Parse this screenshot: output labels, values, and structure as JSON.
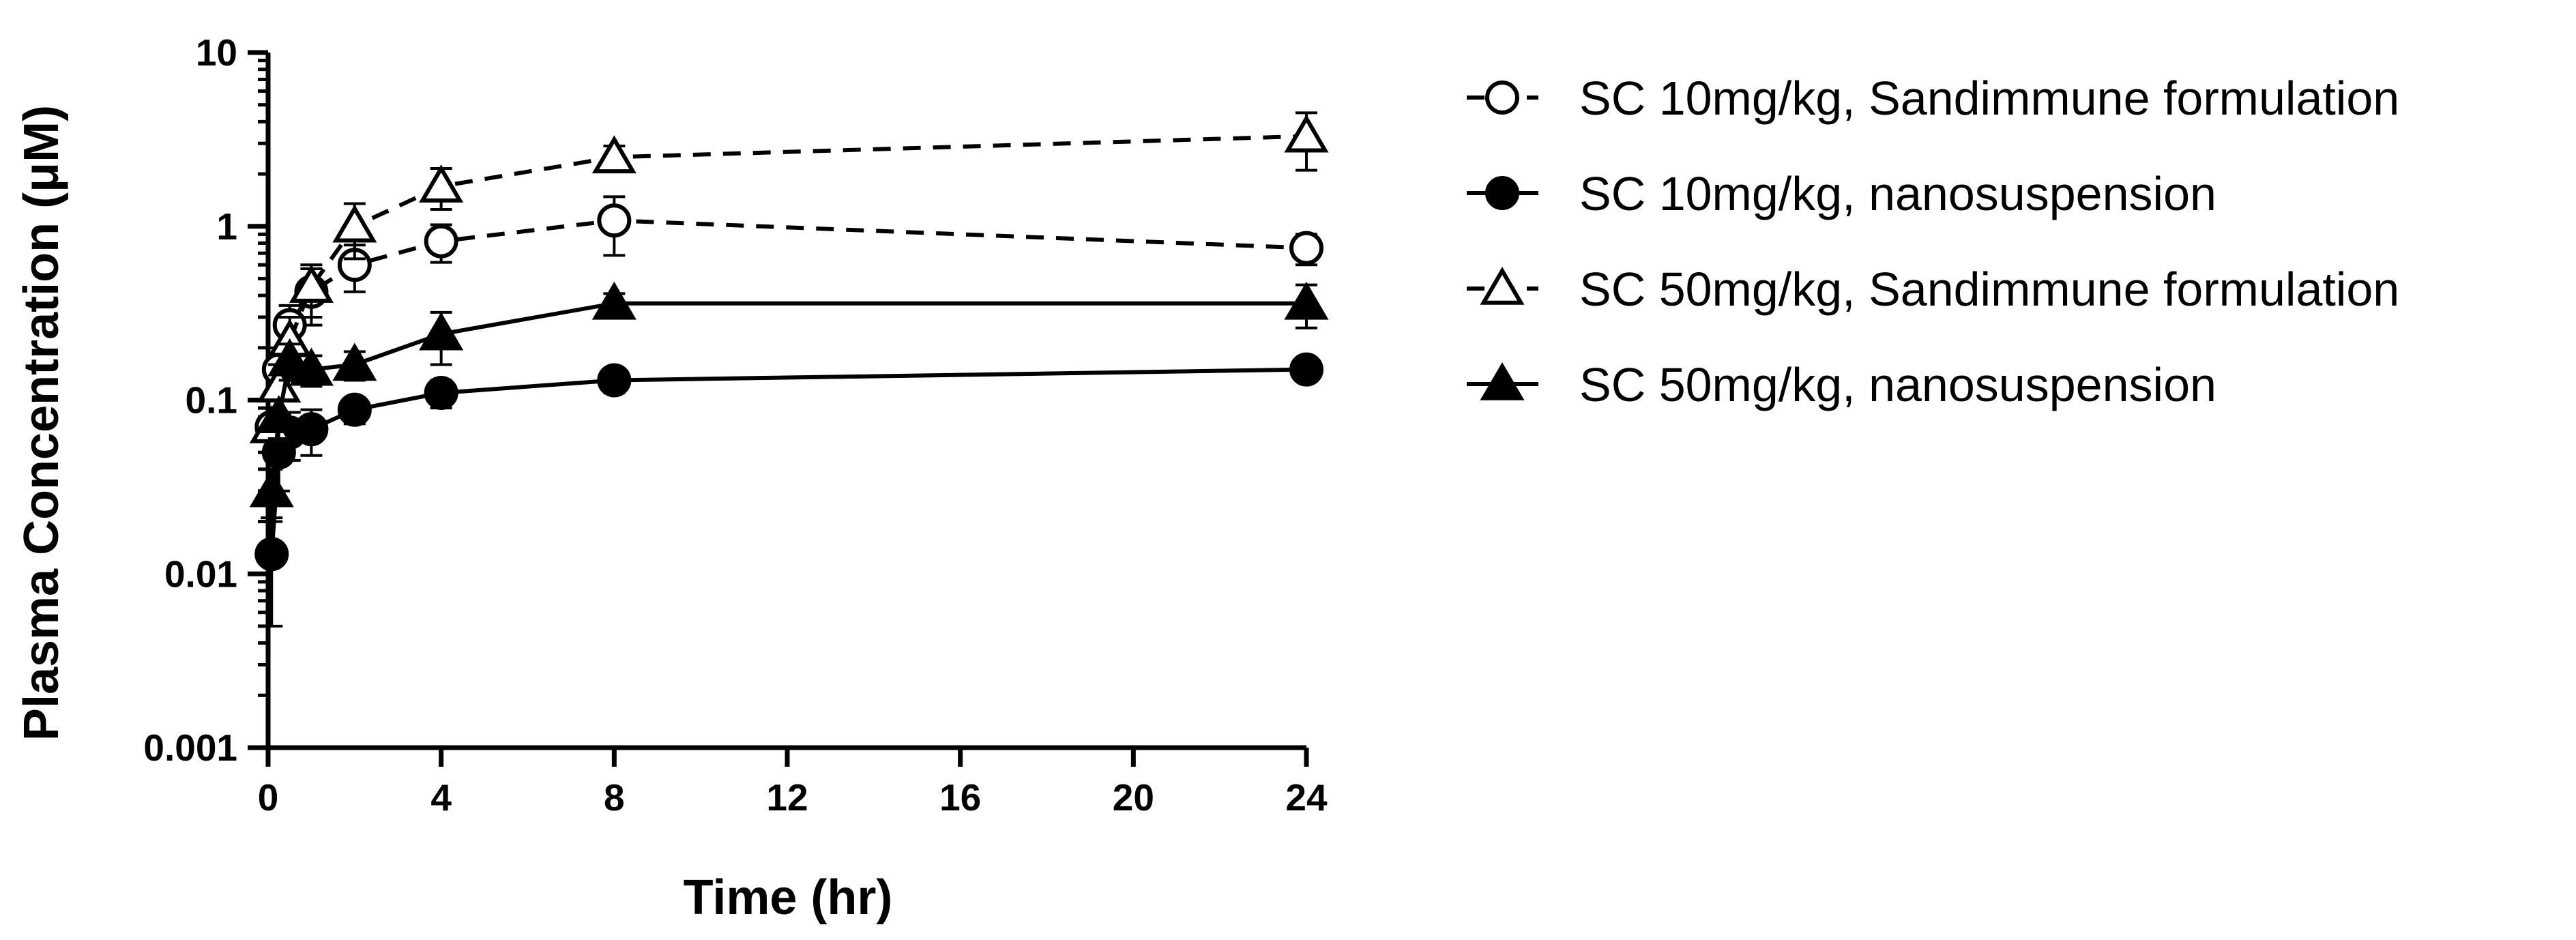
{
  "chart_data": {
    "type": "line",
    "title": "",
    "xlabel": "Time  (hr)",
    "ylabel": "Plasma Concentration  (μM)",
    "xlim": [
      0,
      24
    ],
    "ylim": [
      0.001,
      10
    ],
    "yscale": "log",
    "grid": false,
    "legend_position": "right",
    "x_ticks": [
      "0",
      "4",
      "8",
      "12",
      "16",
      "20",
      "24"
    ],
    "y_ticks": [
      "0.001",
      "0.01",
      "0.1",
      "1",
      "10"
    ],
    "series": [
      {
        "name": "SC 10mg/kg, Sandimmune formulation",
        "line": "dashed",
        "marker": "circle-open",
        "x": [
          0.083,
          0.25,
          0.5,
          1,
          2,
          4,
          8,
          24
        ],
        "y": [
          0.07,
          0.15,
          0.27,
          0.42,
          0.6,
          0.82,
          1.08,
          0.75
        ],
        "error": [
          0.02,
          0.05,
          0.08,
          0.15,
          0.18,
          0.2,
          0.4,
          0.15
        ]
      },
      {
        "name": "SC 10mg/kg, nanosuspension",
        "line": "solid",
        "marker": "circle-filled",
        "x": [
          0.083,
          0.25,
          0.5,
          1,
          2,
          4,
          8,
          24
        ],
        "y": [
          0.013,
          0.05,
          0.065,
          0.068,
          0.088,
          0.11,
          0.13,
          0.15
        ],
        "error": [
          0.008,
          0.02,
          0.02,
          0.02,
          0.015,
          0.02,
          0.02,
          0.01
        ]
      },
      {
        "name": "SC 50mg/kg, Sandimmune formulation",
        "line": "dashed",
        "marker": "triangle-open",
        "x": [
          0.083,
          0.25,
          0.5,
          1,
          2,
          4,
          8,
          24
        ],
        "y": [
          0.07,
          0.12,
          0.22,
          0.45,
          1.0,
          1.7,
          2.5,
          3.3
        ],
        "error": [
          0.02,
          0.04,
          0.08,
          0.15,
          0.35,
          0.45,
          0.4,
          1.2
        ]
      },
      {
        "name": "SC 50mg/kg, nanosuspension",
        "line": "solid",
        "marker": "triangle-filled",
        "x": [
          0.083,
          0.25,
          0.5,
          1,
          2,
          4,
          8,
          24
        ],
        "y": [
          0.03,
          0.08,
          0.17,
          0.15,
          0.16,
          0.24,
          0.36,
          0.36
        ],
        "error": [
          0.01,
          0.02,
          0.04,
          0.03,
          0.03,
          0.08,
          0.05,
          0.1
        ]
      }
    ]
  }
}
